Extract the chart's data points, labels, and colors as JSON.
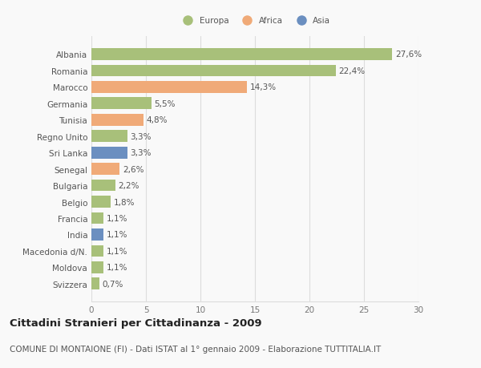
{
  "countries": [
    "Albania",
    "Romania",
    "Marocco",
    "Germania",
    "Tunisia",
    "Regno Unito",
    "Sri Lanka",
    "Senegal",
    "Bulgaria",
    "Belgio",
    "Francia",
    "India",
    "Macedonia d/N.",
    "Moldova",
    "Svizzera"
  ],
  "values": [
    27.6,
    22.4,
    14.3,
    5.5,
    4.8,
    3.3,
    3.3,
    2.6,
    2.2,
    1.8,
    1.1,
    1.1,
    1.1,
    1.1,
    0.7
  ],
  "labels": [
    "27,6%",
    "22,4%",
    "14,3%",
    "5,5%",
    "4,8%",
    "3,3%",
    "3,3%",
    "2,6%",
    "2,2%",
    "1,8%",
    "1,1%",
    "1,1%",
    "1,1%",
    "1,1%",
    "0,7%"
  ],
  "continents": [
    "Europa",
    "Europa",
    "Africa",
    "Europa",
    "Africa",
    "Europa",
    "Asia",
    "Africa",
    "Europa",
    "Europa",
    "Europa",
    "Asia",
    "Europa",
    "Europa",
    "Europa"
  ],
  "colors": {
    "Europa": "#a8c07a",
    "Africa": "#f0aa78",
    "Asia": "#6b8fc0"
  },
  "legend_labels": [
    "Europa",
    "Africa",
    "Asia"
  ],
  "title": "Cittadini Stranieri per Cittadinanza - 2009",
  "subtitle": "COMUNE DI MONTAIONE (FI) - Dati ISTAT al 1° gennaio 2009 - Elaborazione TUTTITALIA.IT",
  "xlim": [
    0,
    30
  ],
  "xticks": [
    0,
    5,
    10,
    15,
    20,
    25,
    30
  ],
  "background_color": "#f9f9f9",
  "grid_color": "#dddddd",
  "bar_height": 0.72,
  "label_fontsize": 7.5,
  "tick_fontsize": 7.5,
  "title_fontsize": 9.5,
  "subtitle_fontsize": 7.5
}
